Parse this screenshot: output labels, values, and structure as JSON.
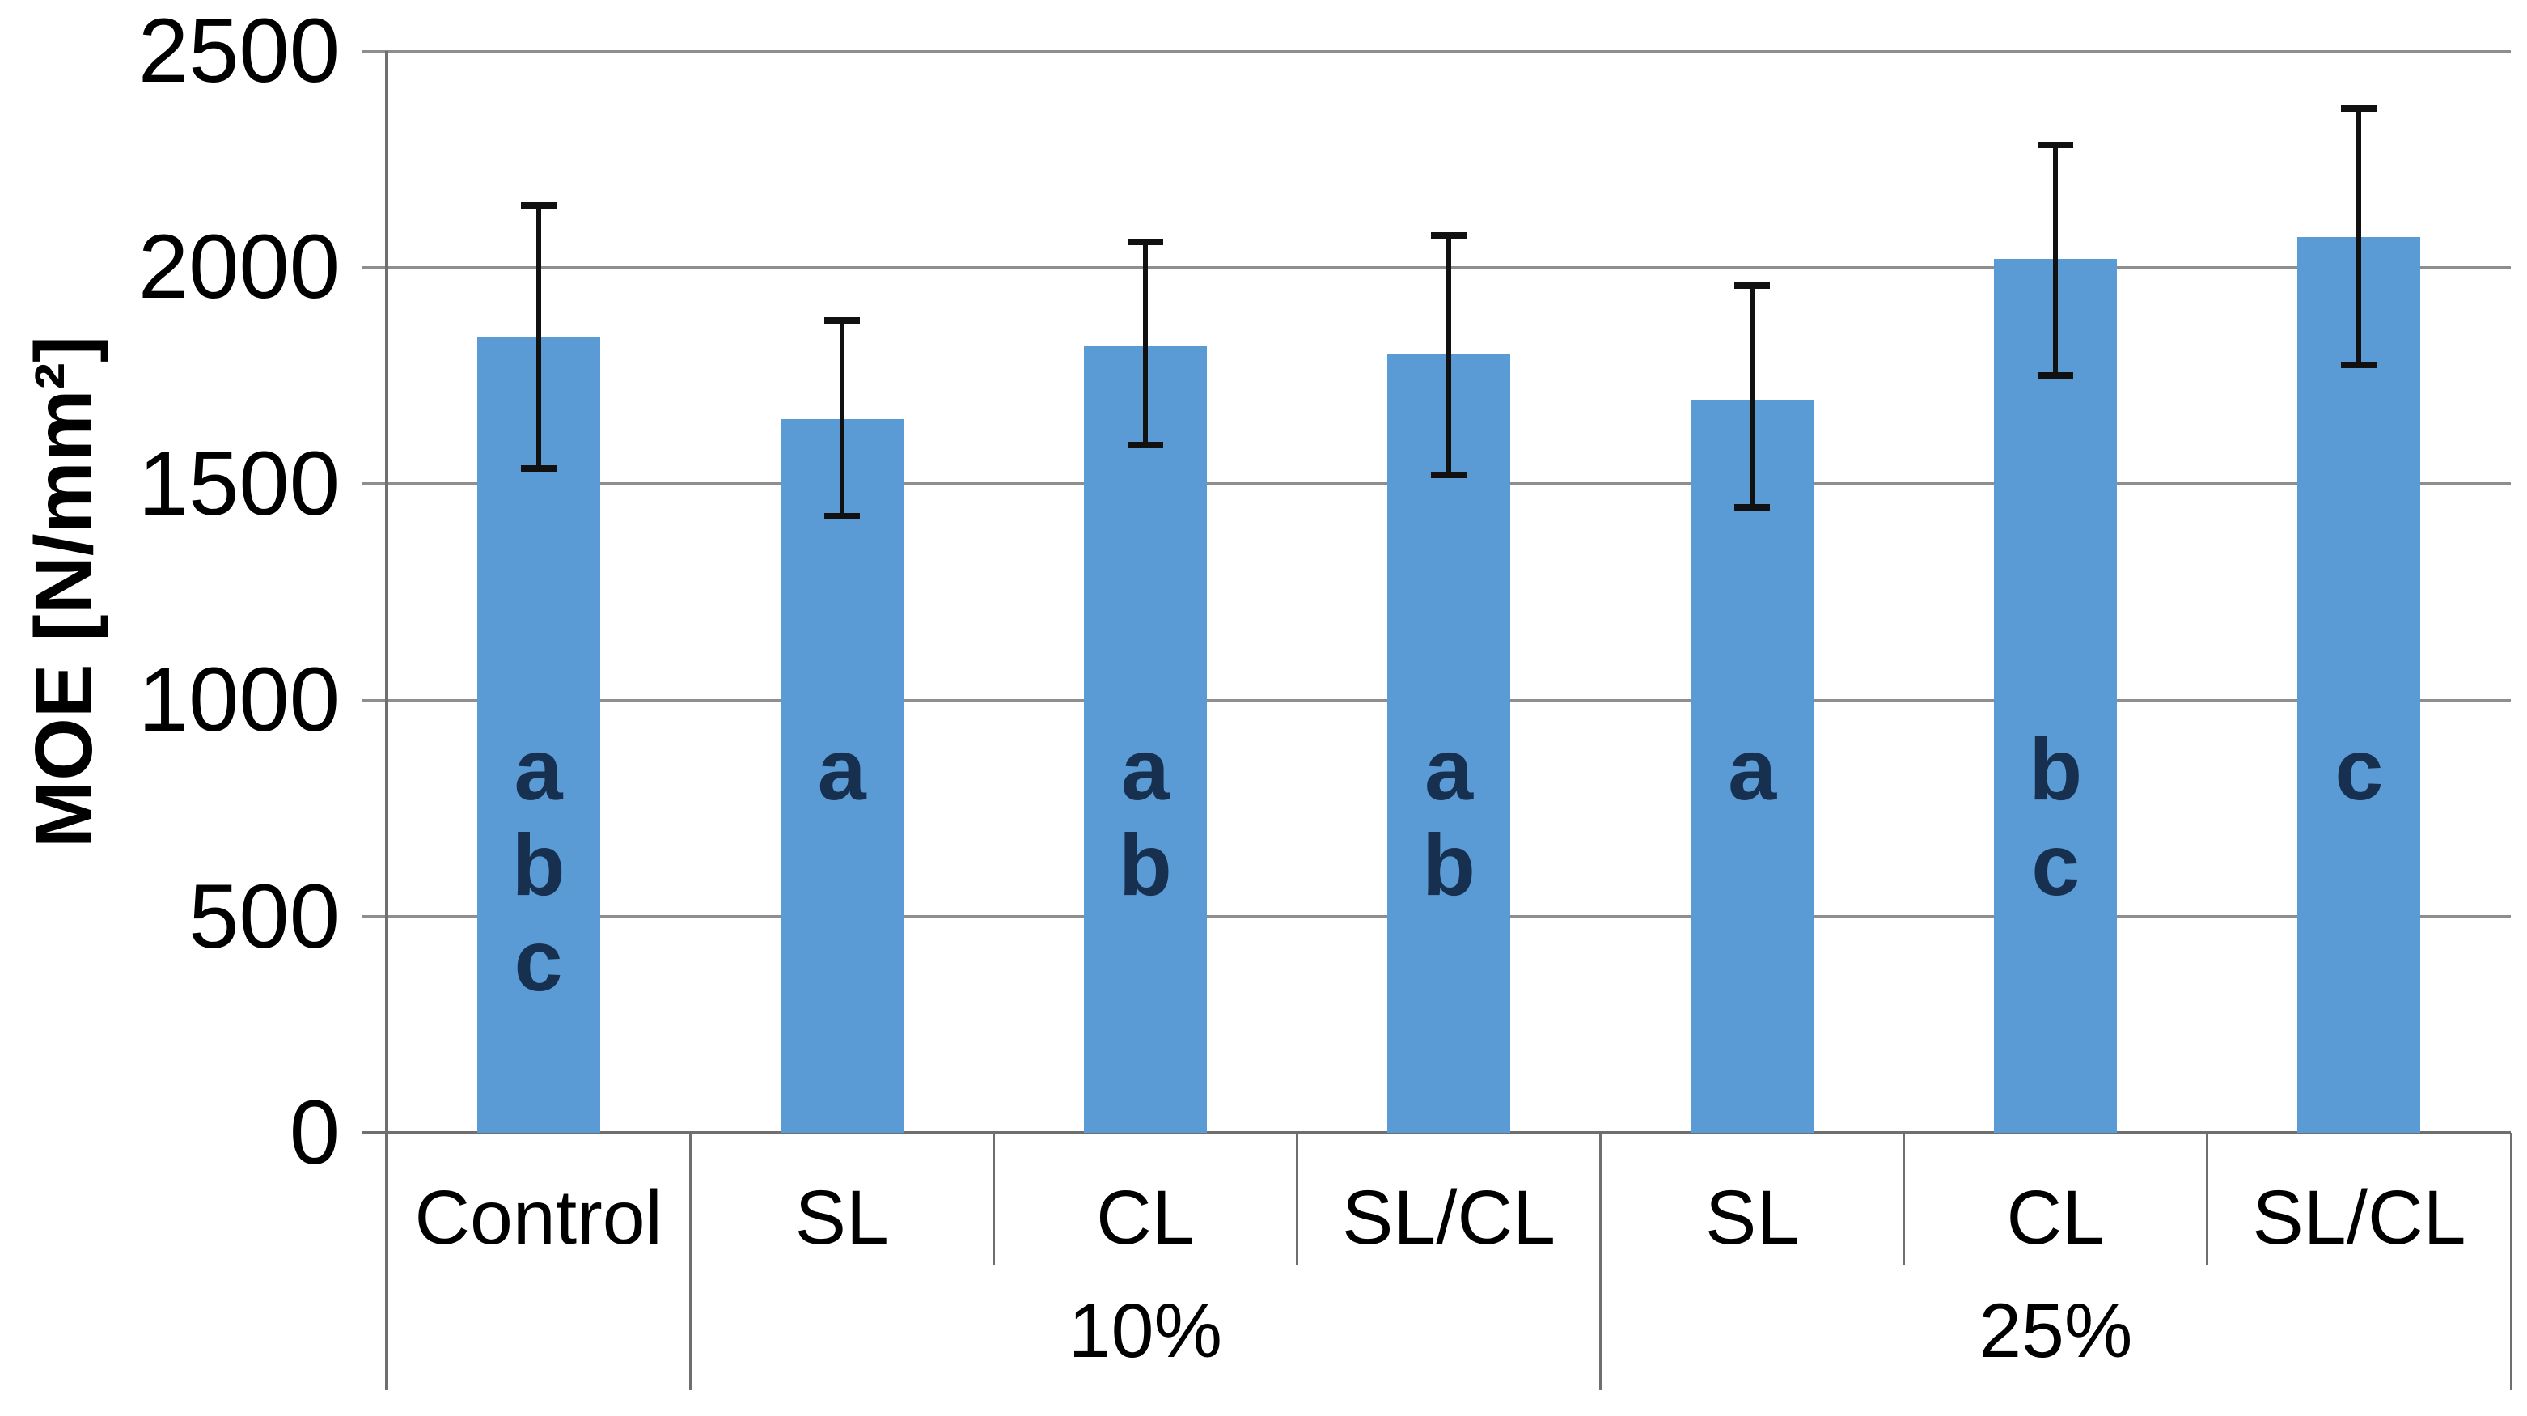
{
  "chart_data": {
    "type": "bar",
    "title": "",
    "xlabel": "",
    "ylabel": "MOE [N/mm²]",
    "ylim": [
      0,
      2500
    ],
    "yticks": [
      2500,
      2000,
      1500,
      1000,
      500,
      0
    ],
    "grid": true,
    "legend": false,
    "bar_color": "#5b9bd5",
    "gridline_color": "#8e8e8e",
    "error_bar_color": "#111111",
    "letter_color": "#18304f",
    "categories": [
      "Control",
      "SL 10%",
      "CL 10%",
      "SL/CL 10%",
      "SL 25%",
      "CL 25%",
      "SL/CL 25%"
    ],
    "groups": [
      {
        "label": "",
        "categories": [
          "Control"
        ]
      },
      {
        "label": "10%",
        "categories": [
          "SL",
          "CL",
          "SL/CL"
        ]
      },
      {
        "label": "25%",
        "categories": [
          "SL",
          "CL",
          "SL/CL"
        ]
      }
    ],
    "series": [
      {
        "name": "MOE",
        "values": [
          1840,
          1650,
          1820,
          1800,
          1695,
          2020,
          2070
        ]
      }
    ],
    "error_bars": {
      "upper": [
        2145,
        1880,
        2060,
        2075,
        1960,
        2285,
        2370
      ],
      "lower": [
        1535,
        1425,
        1590,
        1520,
        1445,
        1750,
        1775
      ]
    },
    "significance_letters": [
      [
        "a",
        "b",
        "c"
      ],
      [
        "a"
      ],
      [
        "a",
        "b"
      ],
      [
        "a",
        "b"
      ],
      [
        "a"
      ],
      [
        "b",
        "c"
      ],
      [
        "c"
      ]
    ]
  }
}
